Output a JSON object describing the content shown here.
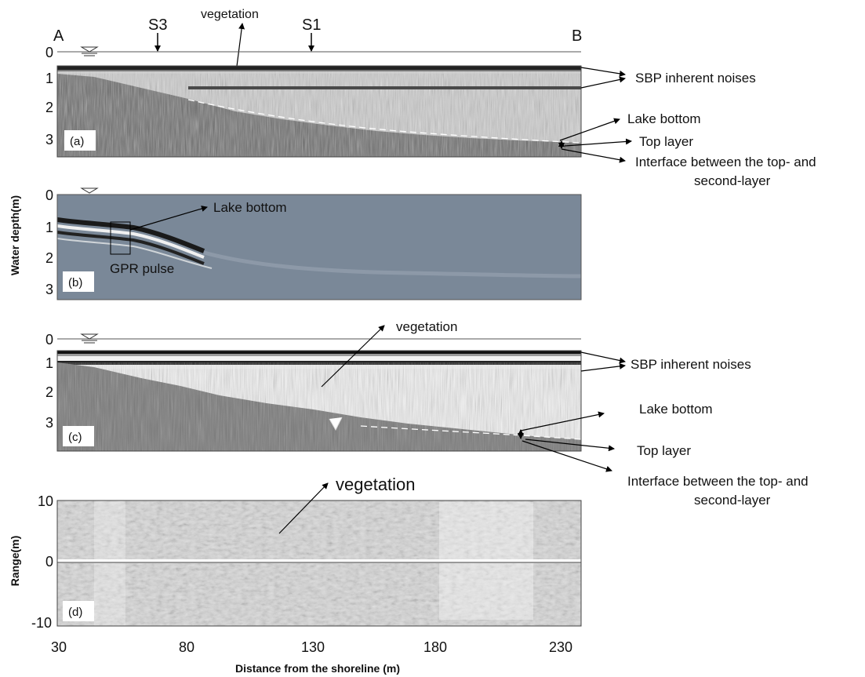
{
  "figure": {
    "x_axis_label": "Distance from the shoreline (m)",
    "x_ticks": [
      "30",
      "80",
      "130",
      "180",
      "230"
    ],
    "y_label_depth": "Water depth(m)",
    "y_label_range": "Range(m)",
    "colors": {
      "gpr_panel": "#7a8898",
      "sbp_background": "#cfcfcf",
      "echo_background": "#dadada"
    }
  },
  "header": {
    "label_a": "A",
    "label_b": "B",
    "label_s3": "S3",
    "label_s1": "S1",
    "vegetation": "vegetation"
  },
  "panel_a": {
    "tag": "(a)",
    "ticks": [
      "0",
      "1",
      "2",
      "3"
    ],
    "annotations": {
      "sbp_noise": "SBP inherent noises",
      "lake_bottom": "Lake bottom",
      "top_layer": "Top layer",
      "interface_line1": "Interface between the top- and",
      "interface_line2": "second-layer"
    }
  },
  "panel_b": {
    "tag": "(b)",
    "ticks": [
      "0",
      "1",
      "2",
      "3"
    ],
    "annotations": {
      "lake_bottom": "Lake bottom",
      "gpr_pulse": "GPR pulse"
    }
  },
  "panel_c": {
    "tag": "(c)",
    "ticks": [
      "0",
      "1",
      "2",
      "3"
    ],
    "annotations": {
      "vegetation": "vegetation",
      "sbp_noise": "SBP inherent noises",
      "lake_bottom": "Lake bottom",
      "top_layer": "Top layer",
      "interface_line1": "Interface between the top- and",
      "interface_line2": "second-layer"
    }
  },
  "panel_d": {
    "tag": "(d)",
    "ticks": [
      "10",
      "0",
      "-10"
    ],
    "annotations": {
      "vegetation": "vegetation"
    }
  }
}
